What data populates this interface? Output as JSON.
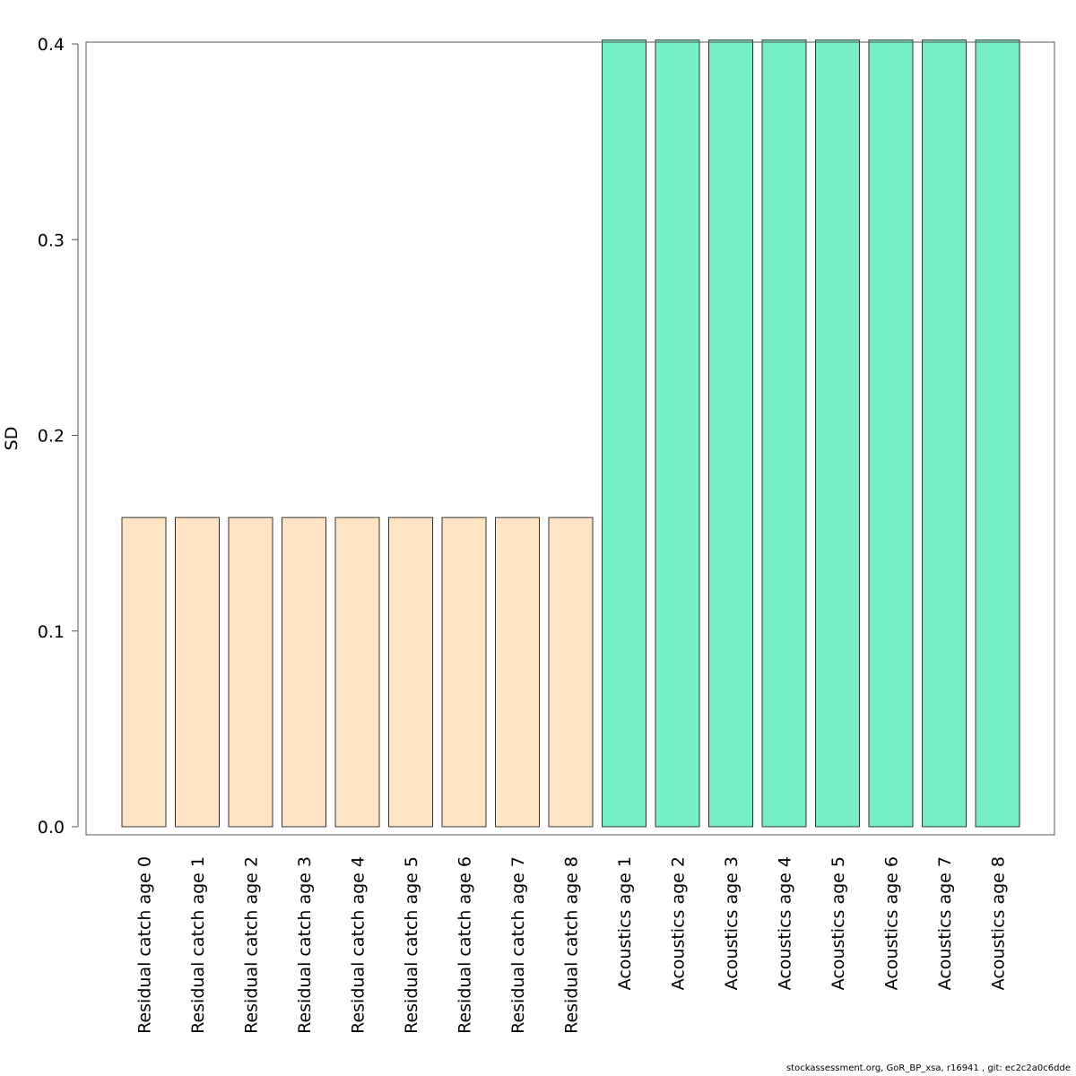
{
  "chart_data": {
    "type": "bar",
    "title": "",
    "xlabel": "",
    "ylabel": "SD",
    "ylim": [
      0,
      0.4
    ],
    "yticks": [
      "0.0",
      "0.1",
      "0.2",
      "0.3",
      "0.4"
    ],
    "grid": false,
    "categories": [
      "Residual catch age 0",
      "Residual catch age 1",
      "Residual catch age 2",
      "Residual catch age 3",
      "Residual catch age 4",
      "Residual catch age 5",
      "Residual catch age 6",
      "Residual catch age 7",
      "Residual catch age 8",
      "Acoustics age 1",
      "Acoustics age 2",
      "Acoustics age 3",
      "Acoustics age 4",
      "Acoustics age 5",
      "Acoustics age 6",
      "Acoustics age 7",
      "Acoustics age 8"
    ],
    "values": [
      0.158,
      0.158,
      0.158,
      0.158,
      0.158,
      0.158,
      0.158,
      0.158,
      0.158,
      0.402,
      0.402,
      0.402,
      0.402,
      0.402,
      0.402,
      0.402,
      0.402
    ],
    "bar_colors": [
      "#ffe4c4",
      "#ffe4c4",
      "#ffe4c4",
      "#ffe4c4",
      "#ffe4c4",
      "#ffe4c4",
      "#ffe4c4",
      "#ffe4c4",
      "#ffe4c4",
      "#76eec6",
      "#76eec6",
      "#76eec6",
      "#76eec6",
      "#76eec6",
      "#76eec6",
      "#76eec6",
      "#76eec6"
    ]
  },
  "footer": "stockassessment.org, GoR_BP_xsa, r16941 , git: ec2c2a0c6dde"
}
